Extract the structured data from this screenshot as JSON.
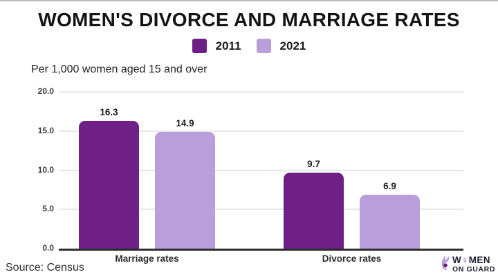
{
  "colors": {
    "series_2011": "#6E2087",
    "series_2021": "#B99EDB",
    "gridline": "#e7e7e7",
    "axis_line": "#2d2d2d",
    "logo_accent": "#7d3f98",
    "background": "#ffffff"
  },
  "chart_data": {
    "type": "bar",
    "title": "WOMEN'S DIVORCE AND MARRIAGE RATES",
    "subtitle": "Per 1,000 women aged 15 and over",
    "categories": [
      "Marriage rates",
      "Divorce rates"
    ],
    "series": [
      {
        "name": "2011",
        "values": [
          16.3,
          9.7
        ],
        "color": "#6E2087"
      },
      {
        "name": "2021",
        "values": [
          14.9,
          6.9
        ],
        "color": "#B99EDB"
      }
    ],
    "ylim": [
      0,
      20
    ],
    "yticks": [
      20,
      15,
      10,
      5,
      0
    ],
    "ytick_format": "one_decimal",
    "grid": true,
    "legend_position": "top-center",
    "value_labels": true
  },
  "footer": {
    "source": "Source: Census",
    "logo": {
      "word_prefix": "W",
      "word_symbol": "♀",
      "word_suffix": "MEN",
      "line2": "ON GUARD"
    }
  }
}
